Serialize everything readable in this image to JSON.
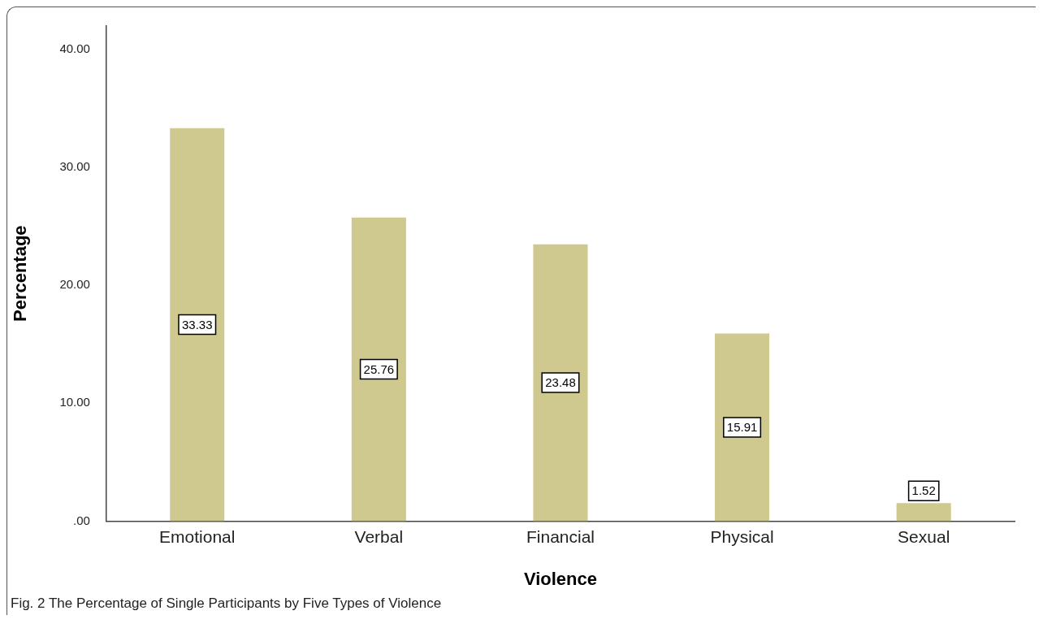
{
  "chart_data": {
    "type": "bar",
    "xlabel": "Violence",
    "ylabel": "Percentage",
    "categories": [
      "Emotional",
      "Verbal",
      "Financial",
      "Physical",
      "Sexual"
    ],
    "values": [
      33.33,
      25.76,
      23.48,
      15.91,
      1.52
    ],
    "color": "#d0c98f",
    "ylim": [
      0,
      42
    ],
    "yticks": [
      {
        "value": 0,
        "label": ".00"
      },
      {
        "value": 10,
        "label": "10.00"
      },
      {
        "value": 20,
        "label": "20.00"
      },
      {
        "value": 30,
        "label": "30.00"
      },
      {
        "value": 40,
        "label": "40.00"
      }
    ],
    "grid": false,
    "legend": false,
    "data_labels": true,
    "annotations": [
      "Fig. 2  The Percentage of Single Participants by Five Types of Violence"
    ]
  }
}
